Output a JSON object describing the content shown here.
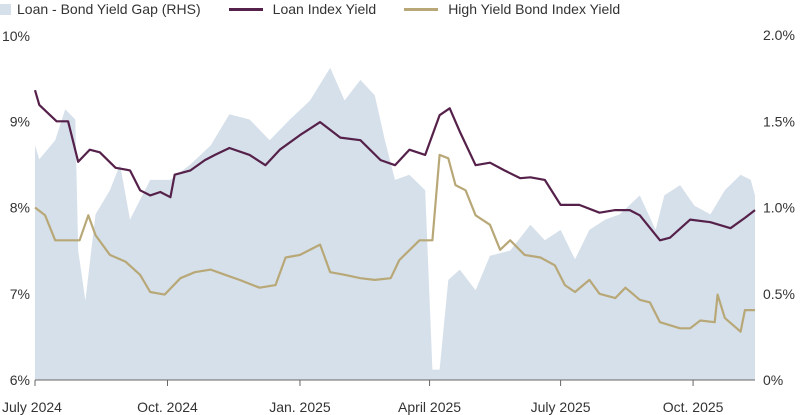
{
  "chart_data": {
    "type": "line",
    "title": "",
    "xlabel": "",
    "ylabel": "",
    "xlim": [
      "2024-07-01",
      "2025-11-13"
    ],
    "ylim_left": [
      6,
      10
    ],
    "ylim_right": [
      0,
      2.0
    ],
    "grid": false,
    "legend_placement": "top-left",
    "x_ticks": [
      {
        "date": "2024-07-01",
        "label": "July 2024"
      },
      {
        "date": "2024-10-01",
        "label": "Oct. 2024"
      },
      {
        "date": "2025-01-01",
        "label": "Jan. 2025"
      },
      {
        "date": "2025-04-01",
        "label": "April 2025"
      },
      {
        "date": "2025-07-01",
        "label": "July 2025"
      },
      {
        "date": "2025-10-01",
        "label": "Oct. 2025"
      }
    ],
    "y_ticks_left": [
      {
        "v": 10,
        "label": "10%"
      },
      {
        "v": 9,
        "label": "9%"
      },
      {
        "v": 8,
        "label": "8%"
      },
      {
        "v": 7,
        "label": "7%"
      },
      {
        "v": 6,
        "label": "6%"
      }
    ],
    "y_ticks_right": [
      {
        "v": 2.0,
        "label": "2.0%"
      },
      {
        "v": 1.5,
        "label": "1.5%"
      },
      {
        "v": 1.0,
        "label": "1.0%"
      },
      {
        "v": 0.5,
        "label": "0.5%"
      },
      {
        "v": 0,
        "label": "0%"
      }
    ],
    "series": [
      {
        "name": "Loan - Bond Yield Gap (RHS)",
        "kind": "area",
        "axis": "right",
        "color": "#d6e0ea",
        "points": [
          [
            "2024-07-01",
            1.36
          ],
          [
            "2024-07-04",
            1.28
          ],
          [
            "2024-07-15",
            1.39
          ],
          [
            "2024-07-22",
            1.57
          ],
          [
            "2024-07-29",
            1.51
          ],
          [
            "2024-07-31",
            0.75
          ],
          [
            "2024-08-05",
            0.46
          ],
          [
            "2024-08-12",
            0.96
          ],
          [
            "2024-08-22",
            1.1
          ],
          [
            "2024-08-29",
            1.25
          ],
          [
            "2024-09-05",
            0.93
          ],
          [
            "2024-09-19",
            1.16
          ],
          [
            "2024-10-03",
            1.16
          ],
          [
            "2024-10-17",
            1.25
          ],
          [
            "2024-10-31",
            1.36
          ],
          [
            "2024-11-13",
            1.54
          ],
          [
            "2024-11-27",
            1.51
          ],
          [
            "2024-12-11",
            1.39
          ],
          [
            "2024-12-25",
            1.51
          ],
          [
            "2025-01-08",
            1.62
          ],
          [
            "2025-01-22",
            1.81
          ],
          [
            "2025-02-01",
            1.62
          ],
          [
            "2025-02-12",
            1.74
          ],
          [
            "2025-02-22",
            1.65
          ],
          [
            "2025-03-01",
            1.39
          ],
          [
            "2025-03-08",
            1.16
          ],
          [
            "2025-03-18",
            1.19
          ],
          [
            "2025-03-29",
            1.1
          ],
          [
            "2025-04-03",
            0.06
          ],
          [
            "2025-04-08",
            0.06
          ],
          [
            "2025-04-14",
            0.58
          ],
          [
            "2025-04-22",
            0.64
          ],
          [
            "2025-05-03",
            0.52
          ],
          [
            "2025-05-13",
            0.72
          ],
          [
            "2025-05-27",
            0.75
          ],
          [
            "2025-06-10",
            0.9
          ],
          [
            "2025-06-20",
            0.81
          ],
          [
            "2025-07-01",
            0.87
          ],
          [
            "2025-07-11",
            0.7
          ],
          [
            "2025-07-21",
            0.87
          ],
          [
            "2025-08-01",
            0.93
          ],
          [
            "2025-08-11",
            0.96
          ],
          [
            "2025-08-25",
            1.07
          ],
          [
            "2025-09-05",
            0.87
          ],
          [
            "2025-09-11",
            1.07
          ],
          [
            "2025-09-22",
            1.13
          ],
          [
            "2025-10-02",
            1.01
          ],
          [
            "2025-10-13",
            0.96
          ],
          [
            "2025-10-23",
            1.1
          ],
          [
            "2025-11-03",
            1.19
          ],
          [
            "2025-11-10",
            1.16
          ],
          [
            "2025-11-13",
            1.07
          ]
        ]
      },
      {
        "name": "Loan Index Yield",
        "kind": "line",
        "axis": "left",
        "color": "#55214a",
        "points": [
          [
            "2024-07-01",
            9.36
          ],
          [
            "2024-07-04",
            9.19
          ],
          [
            "2024-07-16",
            9.0
          ],
          [
            "2024-07-24",
            9.0
          ],
          [
            "2024-07-31",
            8.53
          ],
          [
            "2024-08-08",
            8.67
          ],
          [
            "2024-08-15",
            8.64
          ],
          [
            "2024-08-26",
            8.46
          ],
          [
            "2024-09-05",
            8.43
          ],
          [
            "2024-09-12",
            8.2
          ],
          [
            "2024-09-19",
            8.14
          ],
          [
            "2024-09-26",
            8.18
          ],
          [
            "2024-10-03",
            8.12
          ],
          [
            "2024-10-06",
            8.38
          ],
          [
            "2024-10-17",
            8.43
          ],
          [
            "2024-10-27",
            8.55
          ],
          [
            "2024-11-03",
            8.61
          ],
          [
            "2024-11-13",
            8.69
          ],
          [
            "2024-11-27",
            8.61
          ],
          [
            "2024-12-08",
            8.49
          ],
          [
            "2024-12-18",
            8.67
          ],
          [
            "2025-01-01",
            8.84
          ],
          [
            "2025-01-15",
            8.99
          ],
          [
            "2025-01-29",
            8.81
          ],
          [
            "2025-02-12",
            8.78
          ],
          [
            "2025-02-26",
            8.55
          ],
          [
            "2025-03-08",
            8.49
          ],
          [
            "2025-03-18",
            8.67
          ],
          [
            "2025-03-29",
            8.61
          ],
          [
            "2025-04-08",
            9.07
          ],
          [
            "2025-04-15",
            9.15
          ],
          [
            "2025-04-22",
            8.88
          ],
          [
            "2025-05-03",
            8.49
          ],
          [
            "2025-05-13",
            8.52
          ],
          [
            "2025-05-23",
            8.43
          ],
          [
            "2025-06-03",
            8.34
          ],
          [
            "2025-06-10",
            8.35
          ],
          [
            "2025-06-20",
            8.32
          ],
          [
            "2025-07-01",
            8.03
          ],
          [
            "2025-07-14",
            8.03
          ],
          [
            "2025-07-28",
            7.94
          ],
          [
            "2025-08-08",
            7.97
          ],
          [
            "2025-08-18",
            7.97
          ],
          [
            "2025-08-25",
            7.91
          ],
          [
            "2025-09-08",
            7.62
          ],
          [
            "2025-09-15",
            7.65
          ],
          [
            "2025-09-29",
            7.86
          ],
          [
            "2025-10-13",
            7.83
          ],
          [
            "2025-10-27",
            7.76
          ],
          [
            "2025-11-06",
            7.88
          ],
          [
            "2025-11-13",
            7.97
          ]
        ]
      },
      {
        "name": "High Yield Bond Index Yield",
        "kind": "line",
        "axis": "left",
        "color": "#b8a878",
        "points": [
          [
            "2024-07-01",
            8.0
          ],
          [
            "2024-07-08",
            7.91
          ],
          [
            "2024-07-15",
            7.62
          ],
          [
            "2024-07-25",
            7.62
          ],
          [
            "2024-08-01",
            7.62
          ],
          [
            "2024-08-07",
            7.91
          ],
          [
            "2024-08-12",
            7.68
          ],
          [
            "2024-08-22",
            7.45
          ],
          [
            "2024-09-02",
            7.37
          ],
          [
            "2024-09-12",
            7.22
          ],
          [
            "2024-09-19",
            7.02
          ],
          [
            "2024-09-29",
            6.99
          ],
          [
            "2024-10-10",
            7.18
          ],
          [
            "2024-10-20",
            7.25
          ],
          [
            "2024-10-31",
            7.28
          ],
          [
            "2024-11-10",
            7.22
          ],
          [
            "2024-11-20",
            7.16
          ],
          [
            "2024-12-04",
            7.07
          ],
          [
            "2024-12-15",
            7.1
          ],
          [
            "2024-12-22",
            7.42
          ],
          [
            "2025-01-01",
            7.45
          ],
          [
            "2025-01-15",
            7.57
          ],
          [
            "2025-01-22",
            7.25
          ],
          [
            "2025-02-01",
            7.22
          ],
          [
            "2025-02-12",
            7.18
          ],
          [
            "2025-02-22",
            7.16
          ],
          [
            "2025-03-05",
            7.18
          ],
          [
            "2025-03-11",
            7.39
          ],
          [
            "2025-03-25",
            7.62
          ],
          [
            "2025-04-03",
            7.62
          ],
          [
            "2025-04-08",
            8.61
          ],
          [
            "2025-04-14",
            8.57
          ],
          [
            "2025-04-19",
            8.26
          ],
          [
            "2025-04-26",
            8.2
          ],
          [
            "2025-05-03",
            7.91
          ],
          [
            "2025-05-13",
            7.8
          ],
          [
            "2025-05-20",
            7.51
          ],
          [
            "2025-05-27",
            7.62
          ],
          [
            "2025-06-06",
            7.45
          ],
          [
            "2025-06-17",
            7.42
          ],
          [
            "2025-06-27",
            7.33
          ],
          [
            "2025-07-04",
            7.1
          ],
          [
            "2025-07-11",
            7.02
          ],
          [
            "2025-07-21",
            7.16
          ],
          [
            "2025-07-28",
            7.0
          ],
          [
            "2025-08-08",
            6.95
          ],
          [
            "2025-08-15",
            7.07
          ],
          [
            "2025-08-25",
            6.93
          ],
          [
            "2025-09-01",
            6.9
          ],
          [
            "2025-09-08",
            6.67
          ],
          [
            "2025-09-22",
            6.6
          ],
          [
            "2025-09-29",
            6.6
          ],
          [
            "2025-10-06",
            6.69
          ],
          [
            "2025-10-16",
            6.67
          ],
          [
            "2025-10-18",
            6.99
          ],
          [
            "2025-10-23",
            6.72
          ],
          [
            "2025-11-03",
            6.56
          ],
          [
            "2025-11-06",
            6.81
          ],
          [
            "2025-11-13",
            6.81
          ]
        ]
      }
    ]
  }
}
